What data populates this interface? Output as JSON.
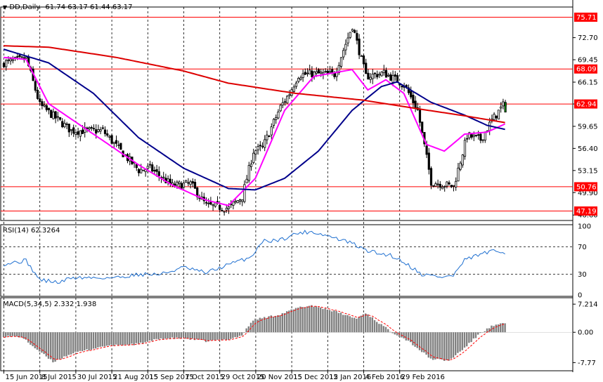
{
  "window": {
    "symbol_label": "DD,Daily",
    "ohlc": "61.74 63.17 61.44 63.17"
  },
  "chart_data": [
    {
      "type": "candlestick",
      "name": "price",
      "ylim": [
        46.0,
        77.0
      ],
      "y_ticks": [
        "72.70",
        "69.45",
        "66.15",
        "62.94",
        "59.65",
        "56.40",
        "53.15",
        "49.90",
        "46.60"
      ],
      "horizontal_levels": [
        {
          "label": "75.71",
          "value": 75.71
        },
        {
          "label": "68.09",
          "value": 68.09
        },
        {
          "label": "62.94",
          "value": 62.94
        },
        {
          "label": "50.76",
          "value": 50.76
        },
        {
          "label": "47.19",
          "value": 47.19
        }
      ],
      "anchors": {
        "index": [
          0,
          10,
          16,
          30,
          44,
          52,
          60,
          65,
          75,
          83,
          90,
          100,
          106,
          111,
          115,
          123,
          127,
          131,
          137,
          147,
          155,
          161,
          169,
          178,
          184,
          190,
          200,
          206,
          212,
          217,
          223
        ],
        "close": [
          69.0,
          69.6,
          62.8,
          59.0,
          59.0,
          56.0,
          53.2,
          53.5,
          50.9,
          51.2,
          48.0,
          47.6,
          49.3,
          56.0,
          56.5,
          62.5,
          64.5,
          67.2,
          67.4,
          67.3,
          74.5,
          67.0,
          67.5,
          65.8,
          62.0,
          51.5,
          50.8,
          58.3,
          57.7,
          60.5,
          63.17
        ]
      },
      "series": [
        {
          "name": "MA fast",
          "color": "#ff00ff",
          "points": [
            [
              0,
              69.8
            ],
            [
              10,
              69.5
            ],
            [
              20,
              63.0
            ],
            [
              40,
              58.5
            ],
            [
              60,
              54.0
            ],
            [
              75,
              51.0
            ],
            [
              90,
              48.8
            ],
            [
              100,
              48.0
            ],
            [
              112,
              52.0
            ],
            [
              125,
              62.0
            ],
            [
              138,
              67.0
            ],
            [
              155,
              68.0
            ],
            [
              162,
              65.0
            ],
            [
              170,
              66.5
            ],
            [
              178,
              64.5
            ],
            [
              188,
              57.0
            ],
            [
              196,
              56.0
            ],
            [
              205,
              58.5
            ],
            [
              215,
              58.8
            ],
            [
              223,
              60.0
            ]
          ]
        },
        {
          "name": "MA mid",
          "color": "#00008b",
          "points": [
            [
              0,
              71.0
            ],
            [
              20,
              69.0
            ],
            [
              40,
              64.5
            ],
            [
              60,
              58.0
            ],
            [
              80,
              53.5
            ],
            [
              100,
              50.5
            ],
            [
              112,
              50.3
            ],
            [
              125,
              52.0
            ],
            [
              140,
              56.0
            ],
            [
              155,
              62.0
            ],
            [
              168,
              65.5
            ],
            [
              175,
              66.2
            ],
            [
              190,
              63.2
            ],
            [
              205,
              61.3
            ],
            [
              215,
              59.8
            ],
            [
              223,
              59.2
            ]
          ]
        },
        {
          "name": "MA slow",
          "color": "#dd0000",
          "points": [
            [
              0,
              71.5
            ],
            [
              20,
              71.3
            ],
            [
              50,
              69.8
            ],
            [
              80,
              67.8
            ],
            [
              100,
              66.0
            ],
            [
              130,
              64.5
            ],
            [
              160,
              63.5
            ],
            [
              185,
              62.2
            ],
            [
              205,
              61.2
            ],
            [
              223,
              60.2
            ]
          ]
        }
      ]
    },
    {
      "type": "line",
      "name": "rsi",
      "title": "RSI(14) 62.3264",
      "ylim": [
        0,
        100
      ],
      "y_ticks": [
        "100",
        "70",
        "30",
        "0"
      ],
      "levels": [
        70,
        30
      ],
      "color": "#1e6fd0",
      "points": [
        [
          0,
          45
        ],
        [
          10,
          50
        ],
        [
          16,
          22
        ],
        [
          25,
          18
        ],
        [
          30,
          25
        ],
        [
          50,
          25
        ],
        [
          60,
          30
        ],
        [
          70,
          30
        ],
        [
          80,
          40
        ],
        [
          90,
          32
        ],
        [
          100,
          44
        ],
        [
          110,
          55
        ],
        [
          115,
          78
        ],
        [
          123,
          80
        ],
        [
          131,
          90
        ],
        [
          137,
          92
        ],
        [
          145,
          85
        ],
        [
          155,
          75
        ],
        [
          160,
          66
        ],
        [
          167,
          60
        ],
        [
          172,
          58
        ],
        [
          178,
          48
        ],
        [
          186,
          30
        ],
        [
          195,
          26
        ],
        [
          200,
          28
        ],
        [
          205,
          50
        ],
        [
          211,
          58
        ],
        [
          217,
          63
        ],
        [
          223,
          62.3
        ]
      ]
    },
    {
      "type": "bar",
      "name": "macd",
      "title": "MACD(5,34,5) 2.332 1.938",
      "ylim": [
        -9.5,
        8.5
      ],
      "y_ticks": [
        "7.214",
        "0.00",
        "-7.77"
      ],
      "color": "#808080",
      "signal_color": "#ff0000",
      "points": [
        [
          0,
          -1.0
        ],
        [
          8,
          -1.2
        ],
        [
          14,
          -4.0
        ],
        [
          22,
          -7.6
        ],
        [
          30,
          -5.5
        ],
        [
          45,
          -3.5
        ],
        [
          60,
          -3.0
        ],
        [
          70,
          -1.6
        ],
        [
          80,
          -1.5
        ],
        [
          90,
          -2.3
        ],
        [
          100,
          -1.8
        ],
        [
          106,
          -0.8
        ],
        [
          111,
          3.2
        ],
        [
          118,
          4.0
        ],
        [
          123,
          4.6
        ],
        [
          131,
          6.3
        ],
        [
          137,
          6.9
        ],
        [
          146,
          5.6
        ],
        [
          157,
          3.5
        ],
        [
          161,
          5.0
        ],
        [
          166,
          2.8
        ],
        [
          172,
          0.3
        ],
        [
          180,
          -2.2
        ],
        [
          190,
          -6.8
        ],
        [
          198,
          -7.3
        ],
        [
          205,
          -4.0
        ],
        [
          212,
          -0.2
        ],
        [
          217,
          1.5
        ],
        [
          223,
          2.33
        ]
      ]
    }
  ],
  "x_axis": {
    "labels": [
      "15 Jun 2015",
      "8 Jul 2015",
      "30 Jul 2015",
      "21 Aug 2015",
      "15 Sep 2015",
      "7 Oct 2015",
      "29 Oct 2015",
      "20 Nov 2015",
      "15 Dec 2015",
      "12 Jan 2016",
      "4 Feb 2016",
      "29 Feb 2016"
    ],
    "label_index": [
      0,
      16,
      32,
      48,
      64,
      80,
      96,
      112,
      128,
      144,
      160,
      176
    ]
  },
  "colors": {
    "bull": "#ffffff",
    "bear": "#000000",
    "level": "#ff0000",
    "up_candle": "#008000"
  }
}
